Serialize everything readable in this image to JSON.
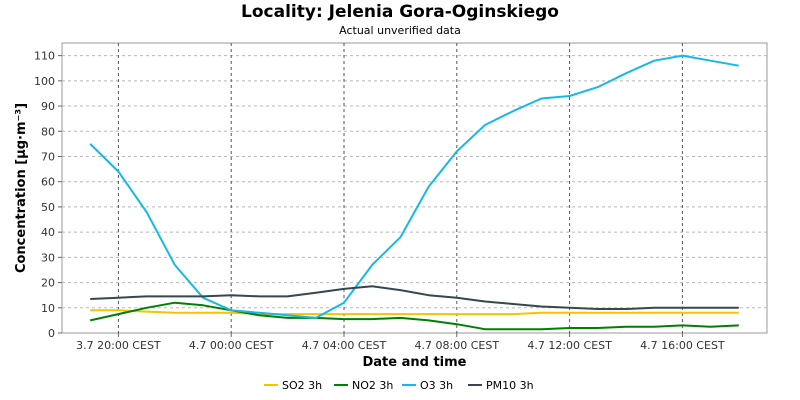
{
  "chart_data": {
    "type": "line",
    "title": "Locality: Jelenia Gora-Oginskiego",
    "subtitle": "Actual unverified data",
    "xlabel": "Date and time",
    "ylabel": "Concentration [µg·m⁻³]",
    "ylim": [
      0,
      115
    ],
    "yticks": [
      0,
      10,
      20,
      30,
      40,
      50,
      60,
      70,
      80,
      90,
      100,
      110
    ],
    "xlim": [
      "3.7 18:00 CEST",
      "4.7 19:00 CEST"
    ],
    "xticks": [
      {
        "x": "3.7 20:00 CEST",
        "label": "3.7 20:00 CEST"
      },
      {
        "x": "4.7 00:00 CEST",
        "label": "4.7 00:00 CEST"
      },
      {
        "x": "4.7 04:00 CEST",
        "label": "4.7 04:00 CEST"
      },
      {
        "x": "4.7 08:00 CEST",
        "label": "4.7 08:00 CEST"
      },
      {
        "x": "4.7 12:00 CEST",
        "label": "4.7 12:00 CEST"
      },
      {
        "x": "4.7 16:00 CEST",
        "label": "4.7 16:00 CEST"
      }
    ],
    "grid": true,
    "legend_position": "bottom",
    "x": [
      "3.7 19:00 CEST",
      "3.7 20:00 CEST",
      "3.7 21:00 CEST",
      "3.7 22:00 CEST",
      "3.7 23:00 CEST",
      "4.7 00:00 CEST",
      "4.7 01:00 CEST",
      "4.7 02:00 CEST",
      "4.7 03:00 CEST",
      "4.7 04:00 CEST",
      "4.7 05:00 CEST",
      "4.7 06:00 CEST",
      "4.7 07:00 CEST",
      "4.7 08:00 CEST",
      "4.7 09:00 CEST",
      "4.7 10:00 CEST",
      "4.7 11:00 CEST",
      "4.7 12:00 CEST",
      "4.7 13:00 CEST",
      "4.7 14:00 CEST",
      "4.7 15:00 CEST",
      "4.7 16:00 CEST",
      "4.7 17:00 CEST",
      "4.7 18:00 CEST"
    ],
    "series": [
      {
        "name": "SO2 3h",
        "color": "#f5c400",
        "values": [
          9,
          9,
          8.5,
          8,
          8,
          8,
          7.5,
          7.5,
          7.5,
          7.5,
          7.5,
          7.5,
          7.5,
          7.5,
          7.5,
          7.5,
          8,
          8,
          8,
          8,
          8,
          8,
          8,
          8
        ]
      },
      {
        "name": "NO2 3h",
        "color": "#008000",
        "values": [
          5,
          7.5,
          10,
          12,
          11,
          9,
          7,
          6,
          6,
          5.5,
          5.5,
          6,
          5,
          3.5,
          1.5,
          1.5,
          1.5,
          2,
          2,
          2.5,
          2.5,
          3,
          2.5,
          3
        ]
      },
      {
        "name": "O3 3h",
        "color": "#17b8e8",
        "values": [
          75,
          64,
          48,
          27,
          14,
          9,
          8,
          7,
          6,
          12,
          27,
          38,
          58,
          72,
          82.5,
          88,
          93,
          94,
          97.5,
          103,
          108,
          110,
          108,
          106
        ]
      },
      {
        "name": "PM10 3h",
        "color": "#36474f",
        "values": [
          13.5,
          14,
          14.5,
          14.5,
          14.5,
          15,
          14.5,
          14.5,
          16,
          17.5,
          18.5,
          17,
          15,
          14,
          12.5,
          11.5,
          10.5,
          10,
          9.5,
          9.5,
          10,
          10,
          10,
          10
        ]
      }
    ]
  }
}
